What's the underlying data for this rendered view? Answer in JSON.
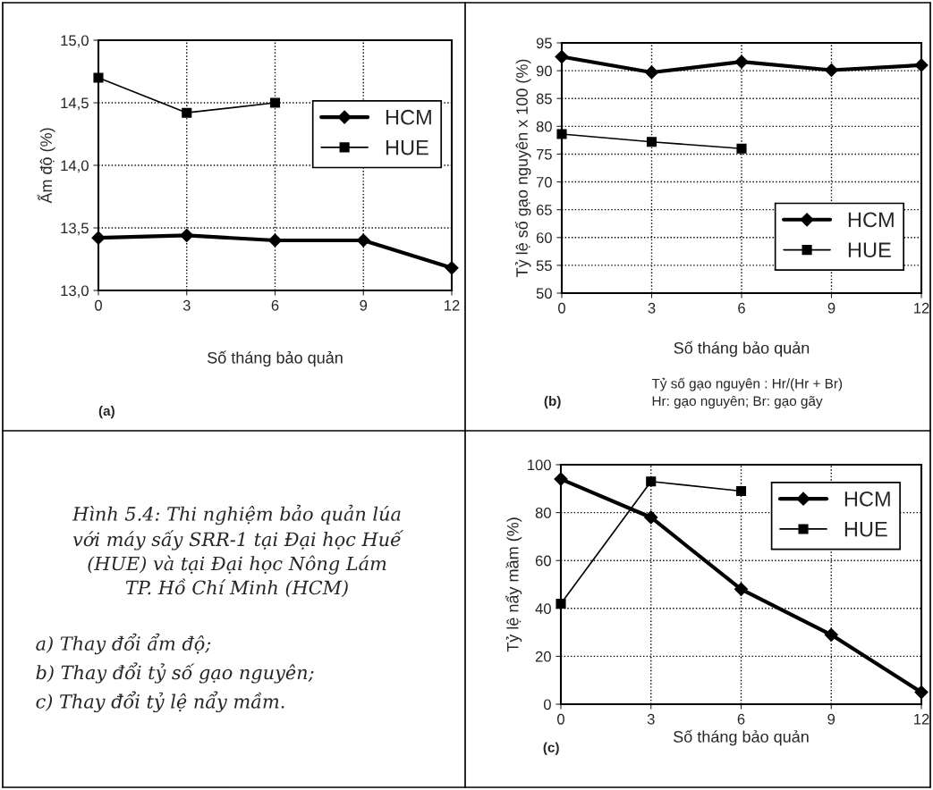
{
  "chart_data": [
    {
      "type": "line",
      "xlabel": "Số tháng bảo quản",
      "ylabel": "Ẩm độ (%)",
      "x": [
        0,
        3,
        6,
        9,
        12
      ],
      "xlim": [
        0,
        12
      ],
      "xticks": [
        0,
        3,
        6,
        9,
        12
      ],
      "ylim": [
        13,
        15
      ],
      "yticks": [
        {
          "value": 13,
          "label": "13,0"
        },
        {
          "value": 13.5,
          "label": "13,5"
        },
        {
          "value": 14,
          "label": "14,0"
        },
        {
          "value": 14.5,
          "label": "14,5"
        },
        {
          "value": 15,
          "label": "15,0"
        }
      ],
      "grid": true,
      "legend": "top right",
      "line_style": "solid",
      "series": [
        {
          "name": "HCM",
          "color": "#000000",
          "marker": "diamond",
          "values": [
            13.42,
            13.44,
            13.4,
            13.4,
            13.18
          ]
        },
        {
          "name": "HUE",
          "color": "#000000",
          "marker": "square",
          "values": [
            14.7,
            14.42,
            14.5,
            null,
            null
          ]
        }
      ],
      "annotations": [
        "(a)"
      ]
    },
    {
      "type": "line",
      "xlabel": "Số tháng bảo quản",
      "ylabel": "Tỷ lệ số gạo nguyên x 100 (%)",
      "x": [
        0,
        3,
        6,
        9,
        12
      ],
      "xlim": [
        0,
        12
      ],
      "xticks": [
        0,
        3,
        6,
        9,
        12
      ],
      "ylim": [
        50,
        95
      ],
      "yticks": [
        50,
        55,
        60,
        65,
        70,
        75,
        80,
        85,
        90,
        95
      ],
      "grid": true,
      "legend": "bottom right",
      "line_style": "solid",
      "series": [
        {
          "name": "HCM",
          "color": "#000000",
          "marker": "diamond",
          "values": [
            92.5,
            89.7,
            91.6,
            90.1,
            91.0
          ]
        },
        {
          "name": "HUE",
          "color": "#000000",
          "marker": "square",
          "values": [
            78.6,
            77.2,
            76.0,
            null,
            null
          ]
        }
      ],
      "annotations": [
        "(b)",
        "Tỷ số gạo nguyên : Hr/(Hr + Br)",
        "Hr: gạo nguyên; Br: gạo gãy"
      ]
    },
    {
      "type": "other",
      "title": "Hình 5.4: Thi nghiệm bảo quản lúa\nvới máy sấy SRR-1 tại Đại học Huế\n(HUE) và tại Đại học Nông Lám\nTP. Hồ Chí Minh (HCM)",
      "annotations": [
        "a) Thay đổi ẩm độ;",
        "b) Thay đổi tỷ số gạo nguyên;",
        "c) Thay đổi tỷ lệ nẩy mầm."
      ]
    },
    {
      "type": "line",
      "xlabel": "Số tháng bảo quản",
      "ylabel": "Tỷ lệ nẩy mầm (%)",
      "x": [
        0,
        3,
        6,
        9,
        12
      ],
      "xlim": [
        0,
        12
      ],
      "xticks": [
        0,
        3,
        6,
        9,
        12
      ],
      "ylim": [
        0,
        100
      ],
      "yticks": [
        0,
        20,
        40,
        60,
        80,
        100
      ],
      "grid": true,
      "legend": "top right",
      "line_style": "solid",
      "series": [
        {
          "name": "HCM",
          "color": "#000000",
          "marker": "diamond",
          "values": [
            94,
            78,
            48,
            29,
            5
          ]
        },
        {
          "name": "HUE",
          "color": "#000000",
          "marker": "square",
          "values": [
            42,
            93,
            89,
            null,
            null
          ]
        }
      ],
      "annotations": [
        "(c)"
      ]
    }
  ]
}
